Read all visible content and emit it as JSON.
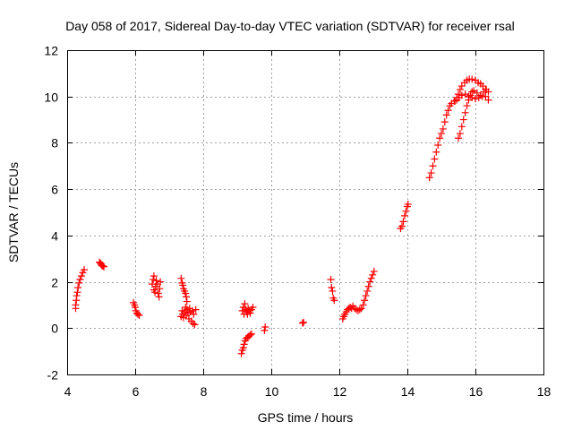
{
  "chart_data": {
    "type": "scatter",
    "title": "Day 058 of 2017, Sidereal Day-to-day VTEC variation (SDTVAR) for receiver rsal",
    "xlabel": "GPS time / hours",
    "ylabel": "SDTVAR / TECUs",
    "xlim": [
      4,
      18
    ],
    "ylim": [
      -2,
      12
    ],
    "x_ticks": [
      4,
      6,
      8,
      10,
      12,
      14,
      16,
      18
    ],
    "y_ticks": [
      -2,
      0,
      2,
      4,
      6,
      8,
      10,
      12
    ],
    "x_tick_labels": [
      "4",
      "6",
      "8",
      "10",
      "12",
      "14",
      "16",
      "18"
    ],
    "y_tick_labels": [
      "-2",
      "0",
      "2",
      "4",
      "6",
      "8",
      "10",
      "12"
    ],
    "grid": true,
    "marker": "plus",
    "series": [
      {
        "name": "SDTVAR",
        "color": "#ff0000",
        "points": [
          [
            4.25,
            0.85
          ],
          [
            4.25,
            1.0
          ],
          [
            4.27,
            1.2
          ],
          [
            4.28,
            1.4
          ],
          [
            4.3,
            1.55
          ],
          [
            4.32,
            1.75
          ],
          [
            4.35,
            1.95
          ],
          [
            4.38,
            2.1
          ],
          [
            4.42,
            2.25
          ],
          [
            4.46,
            2.4
          ],
          [
            4.5,
            2.52
          ],
          [
            4.95,
            2.85
          ],
          [
            4.98,
            2.8
          ],
          [
            5.0,
            2.75
          ],
          [
            5.02,
            2.7
          ],
          [
            5.05,
            2.68
          ],
          [
            5.08,
            2.65
          ],
          [
            5.95,
            1.1
          ],
          [
            5.98,
            1.0
          ],
          [
            6.0,
            0.9
          ],
          [
            6.02,
            0.75
          ],
          [
            6.05,
            0.65
          ],
          [
            6.08,
            0.6
          ],
          [
            6.12,
            0.55
          ],
          [
            6.5,
            1.9
          ],
          [
            6.53,
            2.1
          ],
          [
            6.55,
            2.25
          ],
          [
            6.55,
            1.65
          ],
          [
            6.58,
            1.55
          ],
          [
            6.6,
            1.8
          ],
          [
            6.62,
            2.05
          ],
          [
            6.65,
            1.9
          ],
          [
            6.68,
            1.5
          ],
          [
            6.7,
            1.35
          ],
          [
            6.72,
            1.7
          ],
          [
            6.74,
            2.0
          ],
          [
            7.35,
            2.15
          ],
          [
            7.38,
            1.95
          ],
          [
            7.4,
            1.85
          ],
          [
            7.42,
            1.7
          ],
          [
            7.45,
            1.6
          ],
          [
            7.48,
            1.5
          ],
          [
            7.5,
            1.35
          ],
          [
            7.52,
            1.15
          ],
          [
            7.35,
            0.5
          ],
          [
            7.38,
            0.75
          ],
          [
            7.4,
            0.6
          ],
          [
            7.42,
            0.45
          ],
          [
            7.45,
            0.7
          ],
          [
            7.48,
            0.9
          ],
          [
            7.5,
            0.55
          ],
          [
            7.52,
            0.8
          ],
          [
            7.55,
            0.65
          ],
          [
            7.58,
            0.4
          ],
          [
            7.6,
            0.85
          ],
          [
            7.62,
            0.7
          ],
          [
            7.65,
            0.3
          ],
          [
            7.68,
            0.75
          ],
          [
            7.7,
            0.2
          ],
          [
            7.72,
            0.6
          ],
          [
            7.75,
            0.15
          ],
          [
            7.78,
            0.8
          ],
          [
            9.15,
            0.75
          ],
          [
            9.18,
            0.9
          ],
          [
            9.2,
            0.6
          ],
          [
            9.22,
            1.05
          ],
          [
            9.25,
            0.8
          ],
          [
            9.28,
            0.7
          ],
          [
            9.3,
            0.6
          ],
          [
            9.32,
            0.85
          ],
          [
            9.35,
            0.75
          ],
          [
            9.38,
            0.65
          ],
          [
            9.42,
            0.8
          ],
          [
            9.46,
            0.9
          ],
          [
            9.12,
            -1.1
          ],
          [
            9.15,
            -0.95
          ],
          [
            9.18,
            -0.85
          ],
          [
            9.2,
            -0.7
          ],
          [
            9.23,
            -0.55
          ],
          [
            9.26,
            -0.45
          ],
          [
            9.3,
            -0.4
          ],
          [
            9.34,
            -0.35
          ],
          [
            9.38,
            -0.3
          ],
          [
            9.42,
            -0.25
          ],
          [
            9.8,
            -0.1
          ],
          [
            9.82,
            0.05
          ],
          [
            10.92,
            0.22
          ],
          [
            10.95,
            0.25
          ],
          [
            11.75,
            2.1
          ],
          [
            11.77,
            1.75
          ],
          [
            11.8,
            1.6
          ],
          [
            11.82,
            1.3
          ],
          [
            11.85,
            1.2
          ],
          [
            12.1,
            0.4
          ],
          [
            12.13,
            0.5
          ],
          [
            12.16,
            0.6
          ],
          [
            12.2,
            0.7
          ],
          [
            12.24,
            0.8
          ],
          [
            12.28,
            0.85
          ],
          [
            12.32,
            0.9
          ],
          [
            12.36,
            0.85
          ],
          [
            12.4,
            0.95
          ],
          [
            12.45,
            0.85
          ],
          [
            12.5,
            0.8
          ],
          [
            12.55,
            0.75
          ],
          [
            12.6,
            0.8
          ],
          [
            12.65,
            0.85
          ],
          [
            12.7,
            1.0
          ],
          [
            12.74,
            1.2
          ],
          [
            12.78,
            1.4
          ],
          [
            12.82,
            1.6
          ],
          [
            12.86,
            1.8
          ],
          [
            12.9,
            2.0
          ],
          [
            12.94,
            2.15
          ],
          [
            12.98,
            2.3
          ],
          [
            13.02,
            2.45
          ],
          [
            13.8,
            4.3
          ],
          [
            13.84,
            4.4
          ],
          [
            13.88,
            4.6
          ],
          [
            13.92,
            4.85
          ],
          [
            13.96,
            5.05
          ],
          [
            14.0,
            5.25
          ],
          [
            14.02,
            5.35
          ],
          [
            14.65,
            6.5
          ],
          [
            14.7,
            6.7
          ],
          [
            14.75,
            7.0
          ],
          [
            14.8,
            7.3
          ],
          [
            14.85,
            7.6
          ],
          [
            14.9,
            7.9
          ],
          [
            14.95,
            8.2
          ],
          [
            15.0,
            8.4
          ],
          [
            15.05,
            8.6
          ],
          [
            15.1,
            8.9
          ],
          [
            15.15,
            9.2
          ],
          [
            15.2,
            9.4
          ],
          [
            15.25,
            9.6
          ],
          [
            15.3,
            9.7
          ],
          [
            15.38,
            9.8
          ],
          [
            15.45,
            9.85
          ],
          [
            15.52,
            9.95
          ],
          [
            15.6,
            10.05
          ],
          [
            15.7,
            10.1
          ],
          [
            15.8,
            10.0
          ],
          [
            15.9,
            9.95
          ],
          [
            16.0,
            9.9
          ],
          [
            16.1,
            9.95
          ],
          [
            16.2,
            10.0
          ],
          [
            16.3,
            10.0
          ],
          [
            16.38,
            9.85
          ],
          [
            15.5,
            8.2
          ],
          [
            15.55,
            8.4
          ],
          [
            15.6,
            8.7
          ],
          [
            15.65,
            9.0
          ],
          [
            15.7,
            9.3
          ],
          [
            15.75,
            9.6
          ],
          [
            15.8,
            9.85
          ],
          [
            15.85,
            10.05
          ],
          [
            15.9,
            10.2
          ],
          [
            15.95,
            10.25
          ],
          [
            16.05,
            10.15
          ],
          [
            16.15,
            10.05
          ],
          [
            16.25,
            10.2
          ],
          [
            16.32,
            10.3
          ],
          [
            15.4,
            9.8
          ],
          [
            15.45,
            9.95
          ],
          [
            15.5,
            10.1
          ],
          [
            15.55,
            10.3
          ],
          [
            15.6,
            10.45
          ],
          [
            15.68,
            10.6
          ],
          [
            15.75,
            10.7
          ],
          [
            15.82,
            10.75
          ],
          [
            15.9,
            10.75
          ],
          [
            16.0,
            10.7
          ],
          [
            16.08,
            10.6
          ],
          [
            16.15,
            10.55
          ],
          [
            16.22,
            10.45
          ],
          [
            16.3,
            10.3
          ],
          [
            16.38,
            10.2
          ]
        ]
      }
    ]
  }
}
